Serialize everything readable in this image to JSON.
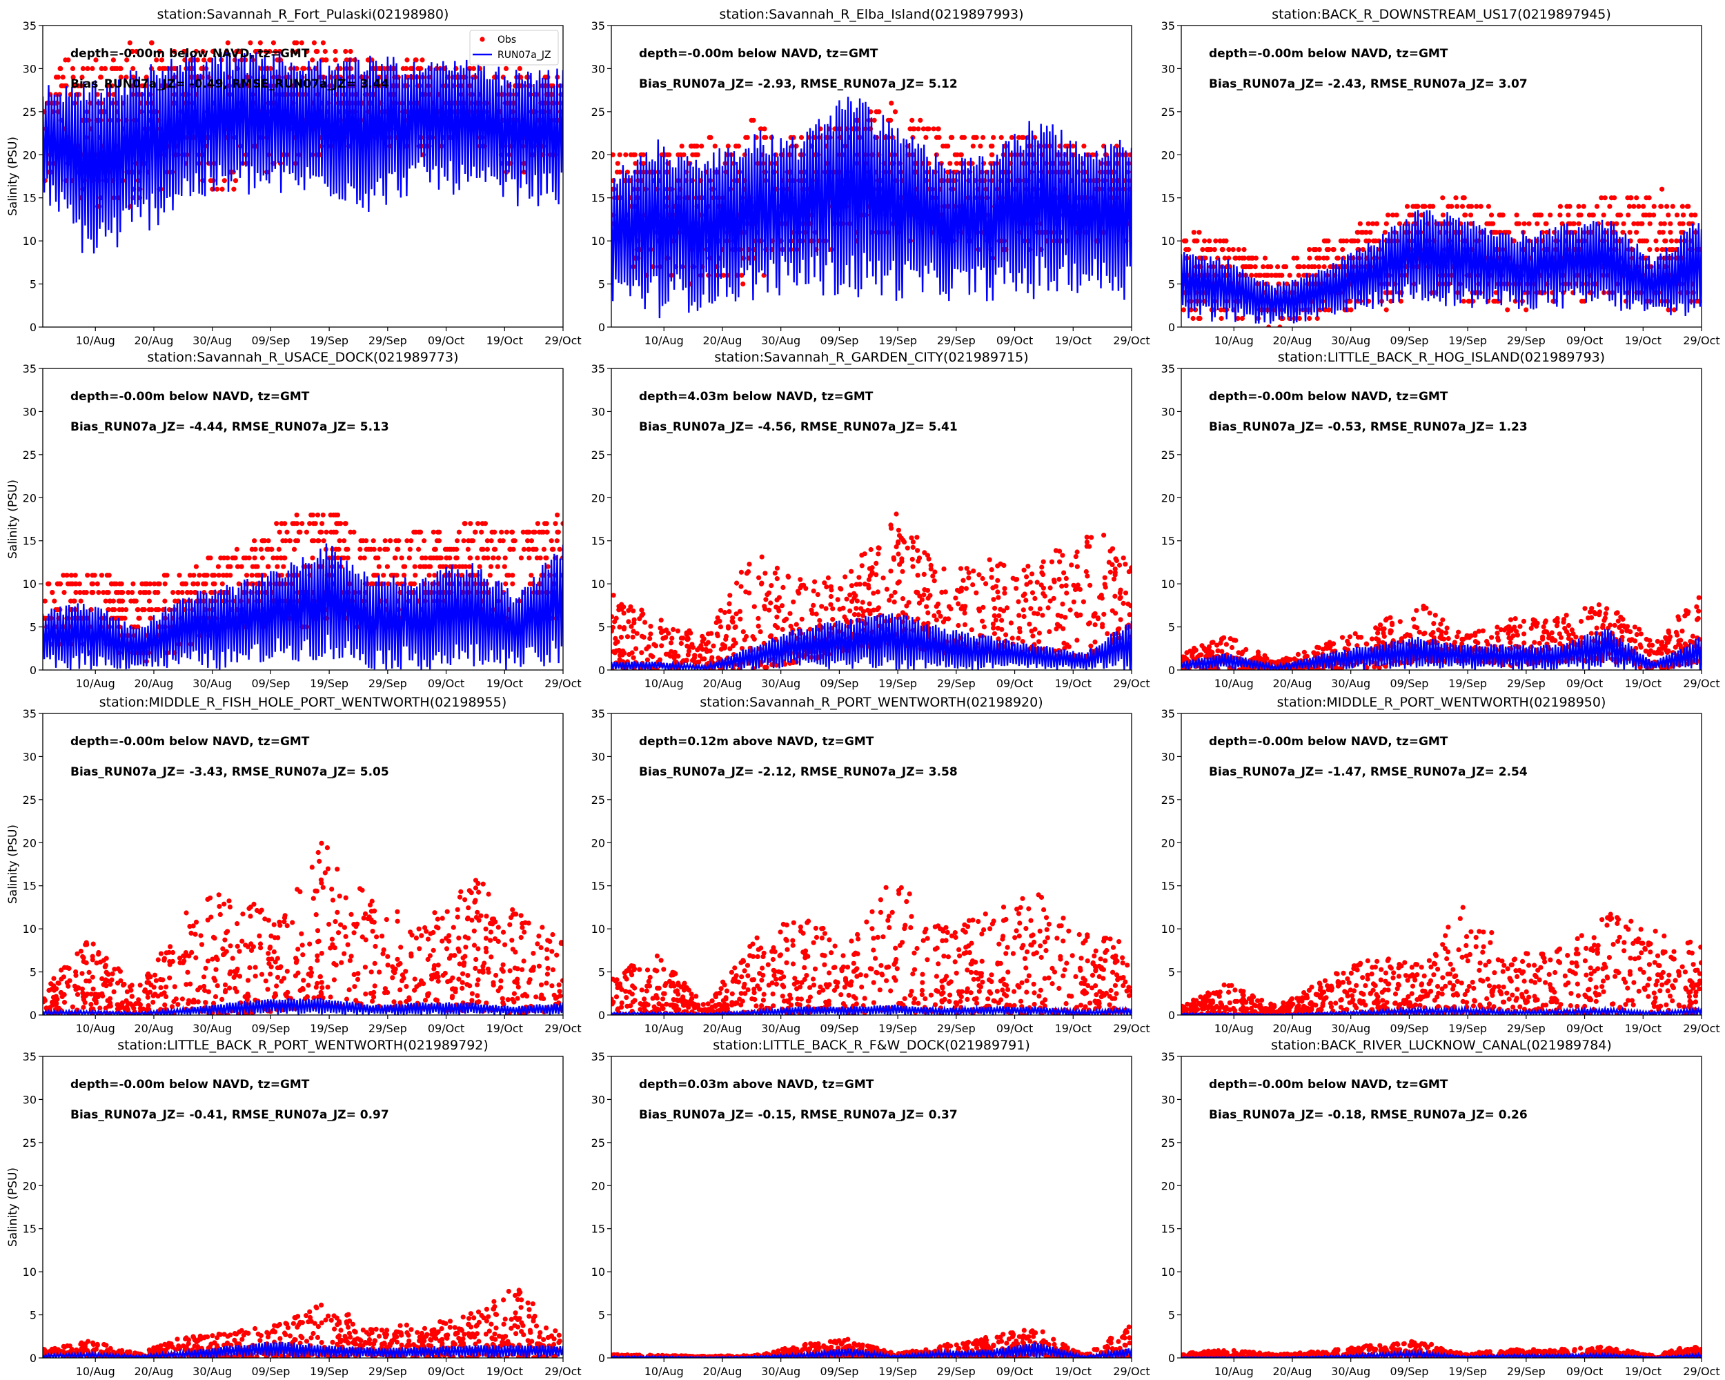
{
  "chart_data": {
    "type": "scatter+line",
    "layout": "4 rows x 3 columns",
    "ylabel": "Salinity (PSU)",
    "ylim": [
      0,
      35
    ],
    "yticks": [
      0,
      5,
      10,
      15,
      20,
      25,
      30,
      35
    ],
    "x_start": "01/Aug",
    "x_days": 89,
    "xticks_day": [
      9,
      19,
      29,
      39,
      49,
      59,
      69,
      79,
      89
    ],
    "xtick_labels": [
      "10/Aug",
      "20/Aug",
      "30/Aug",
      "09/Sep",
      "19/Sep",
      "29/Sep",
      "09/Oct",
      "19/Oct",
      "29/Oct"
    ],
    "legend": {
      "placement": "top-right",
      "entries": [
        "Obs",
        "RUN07a_JZ"
      ]
    },
    "series_colors": {
      "Obs": "#ff0000",
      "RUN07a_JZ": "#0000ff"
    },
    "envelope_days": [
      0,
      8.1,
      16.2,
      24.3,
      32.4,
      40.5,
      48.5,
      56.6,
      64.7,
      72.8,
      80.9,
      89
    ],
    "panels": [
      {
        "title": "station:Savannah_R_Fort_Pulaski(02198980)",
        "depth": "depth=-0.00m below NAVD, tz=GMT",
        "stats": "Bias_RUN07a_JZ= -0.49, RMSE_RUN07a_JZ=  3.44",
        "obs_step": 1,
        "obs_low": [
          17,
          14,
          14,
          17,
          15,
          18,
          20,
          22,
          20,
          22,
          17,
          20
        ],
        "obs_high": [
          31,
          31,
          34,
          32,
          33,
          34,
          33,
          31,
          31,
          30,
          30,
          29
        ],
        "model_low": [
          15,
          7,
          10,
          14,
          15,
          15,
          15,
          13,
          16,
          15,
          14,
          14
        ],
        "model_high": [
          28,
          29,
          30,
          32,
          32,
          32,
          31,
          32,
          31,
          31,
          30,
          30
        ]
      },
      {
        "title": "station:Savannah_R_Elba_Island(0219897993)",
        "depth": "depth=-0.00m below NAVD, tz=GMT",
        "stats": "Bias_RUN07a_JZ= -2.93, RMSE_RUN07a_JZ=  5.12",
        "obs_step": 1,
        "obs_low": [
          8,
          5,
          4,
          5,
          8,
          9,
          9,
          10,
          8,
          9,
          10,
          10
        ],
        "obs_high": [
          21,
          20,
          22,
          24,
          22,
          24,
          26,
          23,
          22,
          22,
          21,
          21
        ],
        "model_low": [
          3,
          1,
          2,
          3,
          4,
          3,
          3,
          3,
          3,
          3,
          4,
          3
        ],
        "model_high": [
          18,
          22,
          20,
          23,
          22,
          28,
          24,
          20,
          20,
          25,
          21,
          22
        ]
      },
      {
        "title": "station:BACK_R_DOWNSTREAM_US17(0219897945)",
        "depth": "depth=-0.00m below NAVD, tz=GMT",
        "stats": "Bias_RUN07a_JZ= -2.43, RMSE_RUN07a_JZ=  3.07",
        "obs_step": 1,
        "obs_low": [
          1,
          1,
          0,
          1,
          2,
          3,
          2,
          2,
          2,
          3,
          2,
          2
        ],
        "obs_high": [
          11,
          10,
          7,
          10,
          12,
          15,
          15,
          13,
          14,
          15,
          16,
          14
        ],
        "model_low": [
          0.5,
          0.5,
          0.3,
          0.5,
          2,
          3,
          2,
          2,
          2,
          2,
          1,
          1
        ],
        "model_high": [
          9,
          8,
          5,
          7,
          10,
          14,
          13,
          11,
          12,
          13,
          8,
          13
        ]
      },
      {
        "title": "station:Savannah_R_USACE_DOCK(021989773)",
        "depth": "depth=-0.00m below NAVD, tz=GMT",
        "stats": "Bias_RUN07a_JZ= -4.44, RMSE_RUN07a_JZ=  5.13",
        "obs_step": 1,
        "obs_low": [
          3,
          2,
          1,
          2,
          4,
          5,
          5,
          5,
          6,
          6,
          5,
          6
        ],
        "obs_high": [
          10,
          12,
          10,
          12,
          14,
          17,
          19,
          15,
          16,
          17,
          16,
          18
        ],
        "model_low": [
          0,
          0,
          0,
          0,
          0,
          1,
          1,
          0,
          0,
          0,
          0,
          0
        ],
        "model_high": [
          7,
          8,
          5,
          9,
          10,
          12,
          15,
          11,
          11,
          13,
          9,
          15
        ]
      },
      {
        "title": "station:Savannah_R_GARDEN_CITY(021989715)",
        "depth": "depth=4.03m below NAVD, tz=GMT",
        "stats": "Bias_RUN07a_JZ= -4.56, RMSE_RUN07a_JZ=  5.41",
        "obs_step": 0,
        "obs_low": [
          0,
          0,
          0,
          0,
          1,
          2,
          3,
          2,
          2,
          2,
          1,
          3
        ],
        "obs_high": [
          9,
          6,
          4,
          14,
          11,
          11,
          19,
          12,
          13,
          12,
          17,
          14
        ],
        "model_low": [
          0,
          0,
          0,
          0,
          0,
          0,
          0,
          0,
          0,
          0,
          0,
          0
        ],
        "model_high": [
          1,
          1,
          0.5,
          3,
          5,
          6,
          7,
          5,
          4,
          3,
          2,
          6
        ]
      },
      {
        "title": "station:LITTLE_BACK_R_HOG_ISLAND(021989793)",
        "depth": "depth=-0.00m below NAVD, tz=GMT",
        "stats": "Bias_RUN07a_JZ= -0.53, RMSE_RUN07a_JZ=  1.23",
        "obs_step": 0,
        "obs_low": [
          0,
          0,
          0,
          0,
          0,
          1,
          1,
          0.5,
          1,
          1,
          0,
          1
        ],
        "obs_high": [
          2,
          4,
          1,
          3,
          5,
          8,
          4,
          6,
          6,
          9,
          3,
          10
        ],
        "model_low": [
          0,
          0,
          0,
          0,
          0,
          0,
          0,
          0,
          0,
          0,
          0,
          0
        ],
        "model_high": [
          1,
          2,
          0.5,
          2,
          3,
          4,
          3,
          3,
          3,
          5,
          1,
          4
        ]
      },
      {
        "title": "station:MIDDLE_R_FISH_HOLE_PORT_WENTWORTH(02198955)",
        "depth": "depth=-0.00m below NAVD, tz=GMT",
        "stats": "Bias_RUN07a_JZ= -3.43, RMSE_RUN07a_JZ=  5.05",
        "obs_step": 0,
        "obs_low": [
          0,
          0,
          0,
          0,
          0,
          0.5,
          1,
          0.5,
          0.5,
          0.5,
          0,
          0.5
        ],
        "obs_high": [
          3,
          9,
          3,
          12,
          15,
          11,
          21,
          14,
          10,
          17,
          12,
          9
        ],
        "model_low": [
          0,
          0,
          0,
          0,
          0,
          0,
          0,
          0,
          0,
          0,
          0,
          0
        ],
        "model_high": [
          0.5,
          0.5,
          0.3,
          0.8,
          1.5,
          2,
          2,
          1.2,
          1.5,
          1.5,
          1,
          1.5
        ]
      },
      {
        "title": "station:Savannah_R_PORT_WENTWORTH(02198920)",
        "depth": "depth=0.12m above NAVD, tz=GMT",
        "stats": "Bias_RUN07a_JZ= -2.12, RMSE_RUN07a_JZ=  3.58",
        "obs_step": 0,
        "obs_low": [
          0,
          0,
          0,
          0,
          0,
          0,
          0.5,
          0,
          0,
          0,
          0,
          0
        ],
        "obs_high": [
          5,
          7,
          1,
          9,
          12,
          8,
          17,
          10,
          12,
          15,
          10,
          8
        ],
        "model_low": [
          0,
          0,
          0,
          0,
          0,
          0,
          0,
          0,
          0,
          0,
          0,
          0
        ],
        "model_high": [
          0.3,
          0.3,
          0.2,
          0.5,
          1,
          1,
          1.2,
          0.8,
          1,
          1,
          0.5,
          0.8
        ]
      },
      {
        "title": "station:MIDDLE_R_PORT_WENTWORTH(02198950)",
        "depth": "depth=-0.00m below NAVD, tz=GMT",
        "stats": "Bias_RUN07a_JZ= -1.47, RMSE_RUN07a_JZ=  2.54",
        "obs_step": 0,
        "obs_low": [
          0,
          0,
          0,
          0,
          0,
          0,
          0,
          0,
          0,
          0,
          0,
          0
        ],
        "obs_high": [
          1,
          4,
          1,
          4,
          7,
          6,
          13,
          7,
          8,
          12,
          10,
          8
        ],
        "model_low": [
          0,
          0,
          0,
          0,
          0,
          0,
          0,
          0,
          0,
          0,
          0,
          0
        ],
        "model_high": [
          0.2,
          0.2,
          0.1,
          0.3,
          0.5,
          0.8,
          0.8,
          0.5,
          0.6,
          0.8,
          0.4,
          0.8
        ]
      },
      {
        "title": "station:LITTLE_BACK_R_PORT_WENTWORTH(021989792)",
        "depth": "depth=-0.00m below NAVD, tz=GMT",
        "stats": "Bias_RUN07a_JZ= -0.41, RMSE_RUN07a_JZ=  0.97",
        "obs_step": 0,
        "obs_low": [
          0,
          0,
          0,
          0,
          0,
          0,
          0,
          0,
          0,
          0,
          0,
          0
        ],
        "obs_high": [
          1,
          2,
          0.5,
          2.5,
          3,
          4,
          6.5,
          3.5,
          4,
          5,
          8.5,
          3
        ],
        "model_low": [
          0,
          0,
          0,
          0,
          0,
          0,
          0,
          0,
          0,
          0,
          0,
          0
        ],
        "model_high": [
          0.4,
          0.6,
          0.3,
          0.8,
          1.5,
          2,
          1.5,
          1.2,
          1.3,
          1.5,
          1.5,
          1.5
        ]
      },
      {
        "title": "station:LITTLE_BACK_R_F&W_DOCK(021989791)",
        "depth": "depth=0.03m above NAVD, tz=GMT",
        "stats": "Bias_RUN07a_JZ= -0.15, RMSE_RUN07a_JZ=  0.37",
        "obs_step": 0,
        "obs_low": [
          0,
          0,
          0,
          0,
          0,
          0,
          0,
          0,
          0,
          0,
          0,
          0
        ],
        "obs_high": [
          0.4,
          0.3,
          0.2,
          0.3,
          1.5,
          2.3,
          0.5,
          1.5,
          2.5,
          3.5,
          0.3,
          4
        ],
        "model_low": [
          0,
          0,
          0,
          0,
          0,
          0,
          0,
          0,
          0,
          0,
          0,
          0
        ],
        "model_high": [
          0.2,
          0.2,
          0.1,
          0.2,
          0.5,
          1.2,
          0.3,
          0.8,
          1,
          2,
          0.2,
          1.2
        ]
      },
      {
        "title": "station:BACK_RIVER_LUCKNOW_CANAL(021989784)",
        "depth": "depth=-0.00m below NAVD, tz=GMT",
        "stats": "Bias_RUN07a_JZ= -0.18, RMSE_RUN07a_JZ=  0.26",
        "obs_step": 0,
        "obs_low": [
          0,
          0,
          0,
          0,
          0,
          0,
          0,
          0,
          0,
          0,
          0,
          0
        ],
        "obs_high": [
          0.5,
          1,
          0.4,
          0.8,
          1.5,
          2,
          0.5,
          1,
          1,
          1.3,
          0.3,
          1.8
        ],
        "model_low": [
          0,
          0,
          0,
          0,
          0,
          0,
          0,
          0,
          0,
          0,
          0,
          0
        ],
        "model_high": [
          0.1,
          0.1,
          0.1,
          0.2,
          0.5,
          0.8,
          0.2,
          0.4,
          0.4,
          0.5,
          0.1,
          0.5
        ]
      }
    ]
  }
}
